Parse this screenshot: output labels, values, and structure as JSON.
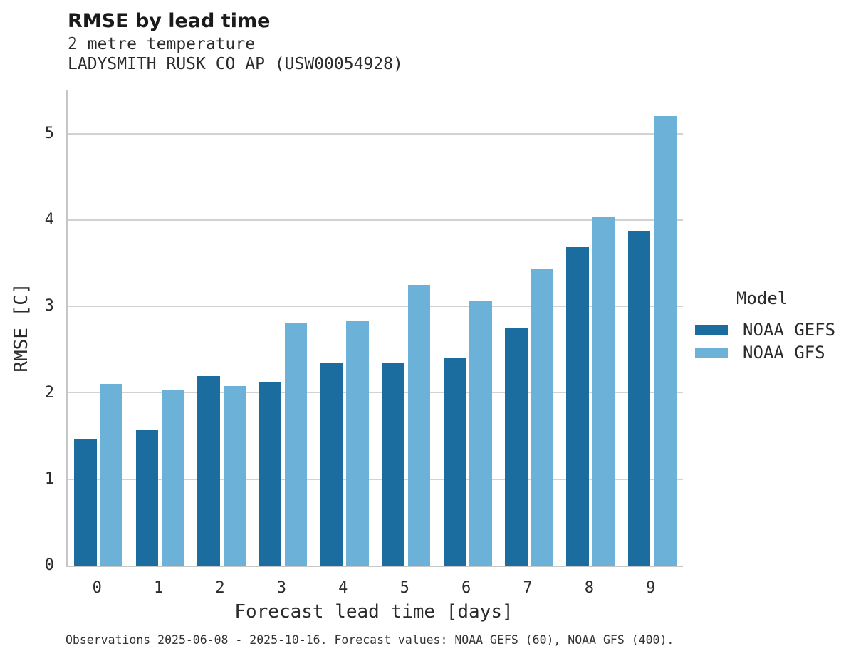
{
  "header": {
    "title": "RMSE by lead time",
    "subtitle1": "2 metre temperature",
    "subtitle2": "LADYSMITH RUSK CO AP (USW00054928)"
  },
  "legend": {
    "title": "Model",
    "items": [
      "NOAA GEFS",
      "NOAA GFS"
    ]
  },
  "footer": {
    "text": "Observations 2025-06-08 - 2025-10-16. Forecast values: NOAA GEFS (60), NOAA GFS (400)."
  },
  "colors": {
    "gefs": "#1a6d9e",
    "gfs": "#6bb1d8",
    "gridline": "#d2d2d2",
    "spine": "#c6c6c6",
    "text": "#262626"
  },
  "chart_data": {
    "type": "bar",
    "title": "RMSE by lead time",
    "subtitle": "2 metre temperature",
    "station": "LADYSMITH RUSK CO AP (USW00054928)",
    "categories": [
      "0",
      "1",
      "2",
      "3",
      "4",
      "5",
      "6",
      "7",
      "8",
      "9"
    ],
    "series": [
      {
        "name": "NOAA GEFS",
        "color": "#1a6d9e",
        "values": [
          1.46,
          1.57,
          2.19,
          2.13,
          2.34,
          2.34,
          2.41,
          2.75,
          3.69,
          3.87
        ]
      },
      {
        "name": "NOAA GFS",
        "color": "#6bb1d8",
        "values": [
          2.1,
          2.04,
          2.08,
          2.8,
          2.84,
          3.25,
          3.06,
          3.43,
          4.03,
          5.2
        ]
      }
    ],
    "xlabel": "Forecast lead time [days]",
    "ylabel": "RMSE [C]",
    "ylim": [
      0,
      5.5
    ],
    "yticks": [
      0,
      1,
      2,
      3,
      4,
      5
    ],
    "grid": true,
    "legend_position": "right",
    "legend_title": "Model",
    "caption": "Observations 2025-06-08 - 2025-10-16. Forecast values: NOAA GEFS (60), NOAA GFS (400)."
  }
}
